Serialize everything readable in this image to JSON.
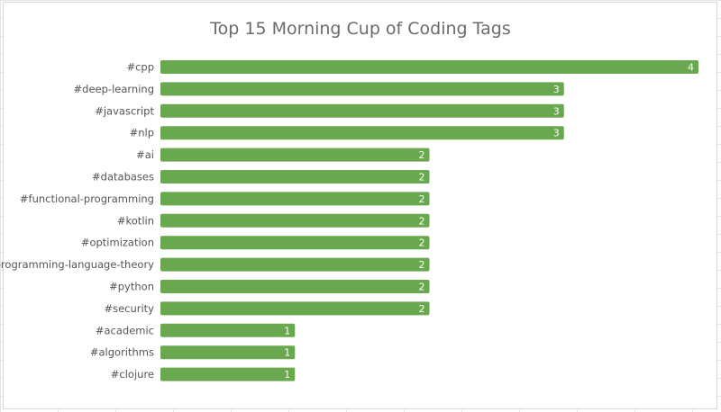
{
  "chart_data": {
    "type": "bar",
    "orientation": "horizontal",
    "title": "Top 15 Morning Cup of Coding Tags",
    "xlabel": "",
    "ylabel": "",
    "xlim": [
      0,
      4
    ],
    "grid": false,
    "legend": "none",
    "bar_color": "#6aa84f",
    "categories": [
      "#cpp",
      "#deep-learning",
      "#javascript",
      "#nlp",
      "#ai",
      "#databases",
      "#functional-programming",
      "#kotlin",
      "#optimization",
      "#programming-language-theory",
      "#python",
      "#security",
      "#academic",
      "#algorithms",
      "#clojure"
    ],
    "values": [
      4,
      3,
      3,
      3,
      2,
      2,
      2,
      2,
      2,
      2,
      2,
      2,
      1,
      1,
      1
    ]
  }
}
